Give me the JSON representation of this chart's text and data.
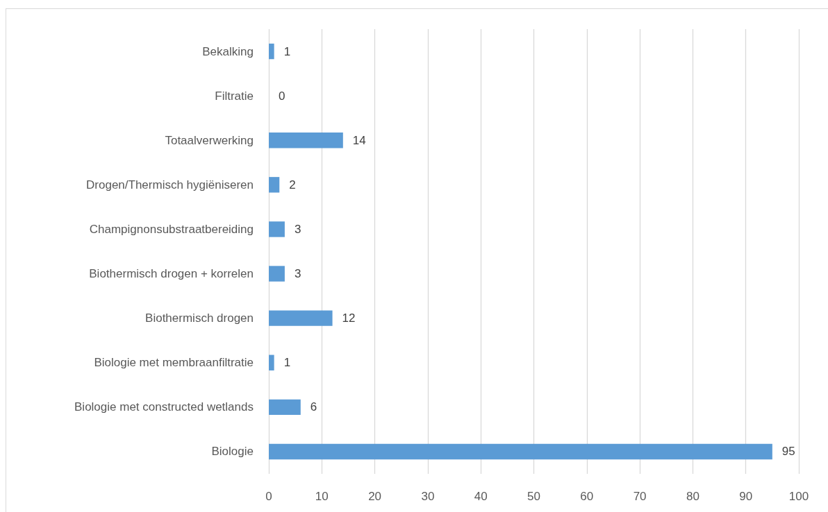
{
  "chart_data": {
    "type": "bar",
    "orientation": "horizontal",
    "categories": [
      "Bekalking",
      "Filtratie",
      "Totaalverwerking",
      "Drogen/Thermisch hygiëniseren",
      "Champignonsubstraatbereiding",
      "Biothermisch drogen + korrelen",
      "Biothermisch drogen",
      "Biologie met membraanfiltratie",
      "Biologie met constructed wetlands",
      "Biologie"
    ],
    "values": [
      1,
      0,
      14,
      2,
      3,
      3,
      12,
      1,
      6,
      95
    ],
    "color": "#5b9bd5",
    "xlim": [
      0,
      100
    ],
    "xticks": [
      0,
      10,
      20,
      30,
      40,
      50,
      60,
      70,
      80,
      90,
      100
    ],
    "grid": "x",
    "data_labels": true
  }
}
